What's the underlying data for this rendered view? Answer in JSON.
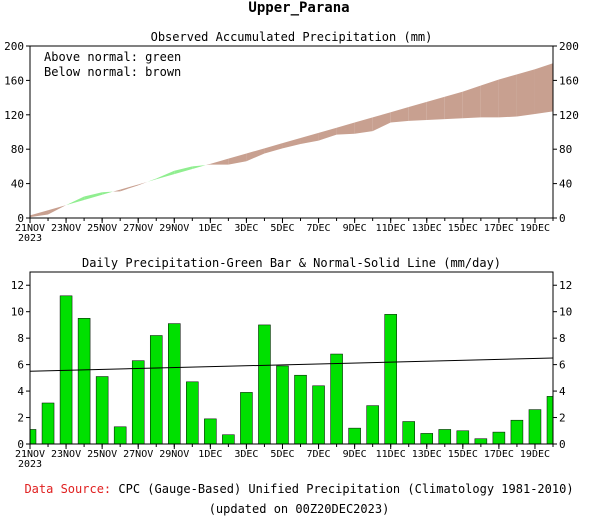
{
  "page": {
    "title": "Upper_Parana",
    "source_label": "Data Source:",
    "source_text": "CPC (Gauge-Based) Unified Precipitation (Climatology 1981-2010)",
    "updated": "(updated on 00Z20DEC2023)"
  },
  "colors": {
    "above_normal": "#90ee90",
    "below_normal": "#c8a090",
    "bar": "#00e000",
    "normal_line": "#000000"
  },
  "chart_data": [
    {
      "type": "area",
      "title": "Observed Accumulated Precipitation (mm)",
      "legend": [
        "Above normal: green",
        "Below normal: brown"
      ],
      "legend_position": "top-left",
      "x_tick_labels": [
        "21NOV",
        "23NOV",
        "25NOV",
        "27NOV",
        "29NOV",
        "1DEC",
        "3DEC",
        "5DEC",
        "7DEC",
        "9DEC",
        "11DEC",
        "13DEC",
        "15DEC",
        "17DEC",
        "19DEC"
      ],
      "x_first_label_year": "2023",
      "ylim": [
        0,
        200
      ],
      "y_ticks": [
        0,
        40,
        80,
        120,
        160,
        200
      ],
      "grid": false,
      "days": [
        "21NOV",
        "22NOV",
        "23NOV",
        "24NOV",
        "25NOV",
        "26NOV",
        "27NOV",
        "28NOV",
        "29NOV",
        "30NOV",
        "1DEC",
        "2DEC",
        "3DEC",
        "4DEC",
        "5DEC",
        "6DEC",
        "7DEC",
        "8DEC",
        "9DEC",
        "10DEC",
        "11DEC",
        "12DEC",
        "13DEC",
        "14DEC",
        "15DEC",
        "16DEC",
        "17DEC",
        "18DEC",
        "19DEC",
        "20DEC"
      ],
      "series": [
        {
          "name": "Observed",
          "values": [
            1,
            4,
            15,
            25,
            30,
            31,
            38,
            46,
            55,
            60,
            62,
            62,
            66,
            75,
            81,
            86,
            90,
            97,
            98,
            101,
            111,
            113,
            114,
            115,
            116,
            117,
            117,
            118,
            121,
            124
          ]
        },
        {
          "name": "Normal",
          "values": [
            3,
            9,
            15,
            21,
            27,
            33,
            39,
            45,
            51,
            57,
            63,
            69,
            75,
            81,
            87,
            93,
            99,
            105,
            111,
            117,
            123,
            129,
            135,
            141,
            147,
            154,
            161,
            167,
            173,
            180
          ]
        }
      ]
    },
    {
      "type": "bar",
      "title": "Daily Precipitation-Green Bar & Normal-Solid Line (mm/day)",
      "x_tick_labels": [
        "21NOV",
        "23NOV",
        "25NOV",
        "27NOV",
        "29NOV",
        "1DEC",
        "3DEC",
        "5DEC",
        "7DEC",
        "9DEC",
        "11DEC",
        "13DEC",
        "15DEC",
        "17DEC",
        "19DEC"
      ],
      "x_first_label_year": "2023",
      "ylim": [
        0,
        13
      ],
      "y_ticks": [
        0,
        2,
        4,
        6,
        8,
        10,
        12
      ],
      "grid": false,
      "days": [
        "21NOV",
        "22NOV",
        "23NOV",
        "24NOV",
        "25NOV",
        "26NOV",
        "27NOV",
        "28NOV",
        "29NOV",
        "30NOV",
        "1DEC",
        "2DEC",
        "3DEC",
        "4DEC",
        "5DEC",
        "6DEC",
        "7DEC",
        "8DEC",
        "9DEC",
        "10DEC",
        "11DEC",
        "12DEC",
        "13DEC",
        "14DEC",
        "15DEC",
        "16DEC",
        "17DEC",
        "18DEC",
        "19DEC",
        "20DEC"
      ],
      "values": [
        1.1,
        3.1,
        11.2,
        9.5,
        5.1,
        1.3,
        6.3,
        8.2,
        9.1,
        4.7,
        1.9,
        0.7,
        3.9,
        9.0,
        5.9,
        5.2,
        4.4,
        6.8,
        1.2,
        2.9,
        9.8,
        1.7,
        0.8,
        1.1,
        1.0,
        0.4,
        0.9,
        1.8,
        2.6,
        3.6
      ],
      "normal_line": [
        5.5,
        6.5
      ]
    }
  ]
}
